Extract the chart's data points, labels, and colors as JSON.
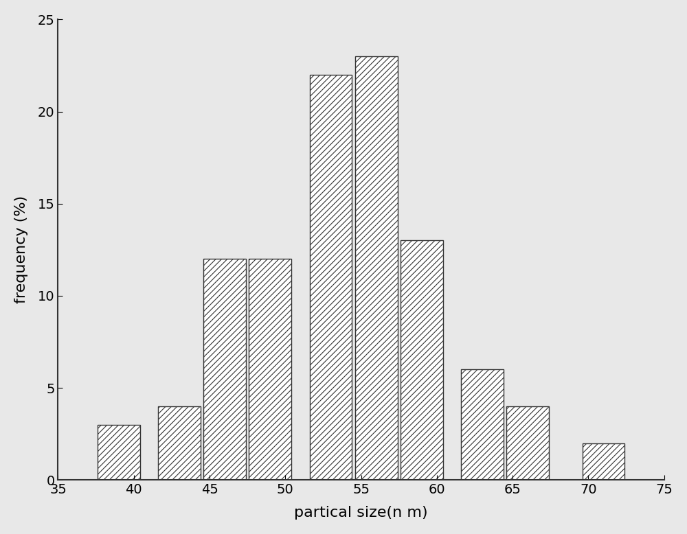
{
  "bar_centers": [
    39,
    43,
    46,
    49,
    53,
    56,
    59,
    63,
    66,
    71
  ],
  "bar_heights": [
    3,
    4,
    12,
    12,
    22,
    23,
    13,
    6,
    4,
    2
  ],
  "bar_width": 2.8,
  "xlabel": "partical size(n m)",
  "ylabel": "frequency (%)",
  "xlim": [
    35,
    75
  ],
  "ylim": [
    0,
    25
  ],
  "xticks": [
    35,
    40,
    45,
    50,
    55,
    60,
    65,
    70,
    75
  ],
  "yticks": [
    0,
    5,
    10,
    15,
    20,
    25
  ],
  "bar_facecolor": "#ffffff",
  "bar_edgecolor": "#333333",
  "hatch": "////",
  "hatch_color": "#888888",
  "background_color": "#e8e8e8",
  "tick_fontsize": 14,
  "label_fontsize": 16,
  "spine_color": "#333333"
}
